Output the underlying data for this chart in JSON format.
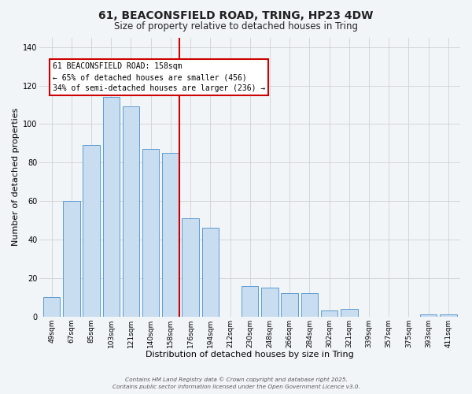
{
  "title_line1": "61, BEACONSFIELD ROAD, TRING, HP23 4DW",
  "title_line2": "Size of property relative to detached houses in Tring",
  "xlabel": "Distribution of detached houses by size in Tring",
  "ylabel": "Number of detached properties",
  "bar_labels": [
    "49sqm",
    "67sqm",
    "85sqm",
    "103sqm",
    "121sqm",
    "140sqm",
    "158sqm",
    "176sqm",
    "194sqm",
    "212sqm",
    "230sqm",
    "248sqm",
    "266sqm",
    "284sqm",
    "302sqm",
    "321sqm",
    "339sqm",
    "357sqm",
    "375sqm",
    "393sqm",
    "411sqm"
  ],
  "bar_values": [
    10,
    60,
    89,
    114,
    109,
    87,
    85,
    51,
    46,
    0,
    16,
    15,
    12,
    12,
    3,
    4,
    0,
    0,
    0,
    1,
    1
  ],
  "bar_color": "#c9ddf0",
  "bar_edge_color": "#5b9bd5",
  "bg_color": "#f2f5f8",
  "grid_color": "#d0d0d0",
  "vline_x_index": 6,
  "vline_color": "#cc0000",
  "annotation_line1": "61 BEACONSFIELD ROAD: 158sqm",
  "annotation_line2": "← 65% of detached houses are smaller (456)",
  "annotation_line3": "34% of semi-detached houses are larger (236) →",
  "annotation_box_color": "#ffffff",
  "annotation_box_edge": "#cc0000",
  "ylim": [
    0,
    145
  ],
  "yticks": [
    0,
    20,
    40,
    60,
    80,
    100,
    120,
    140
  ],
  "footnote1": "Contains HM Land Registry data © Crown copyright and database right 2025.",
  "footnote2": "Contains public sector information licensed under the Open Government Licence v3.0."
}
